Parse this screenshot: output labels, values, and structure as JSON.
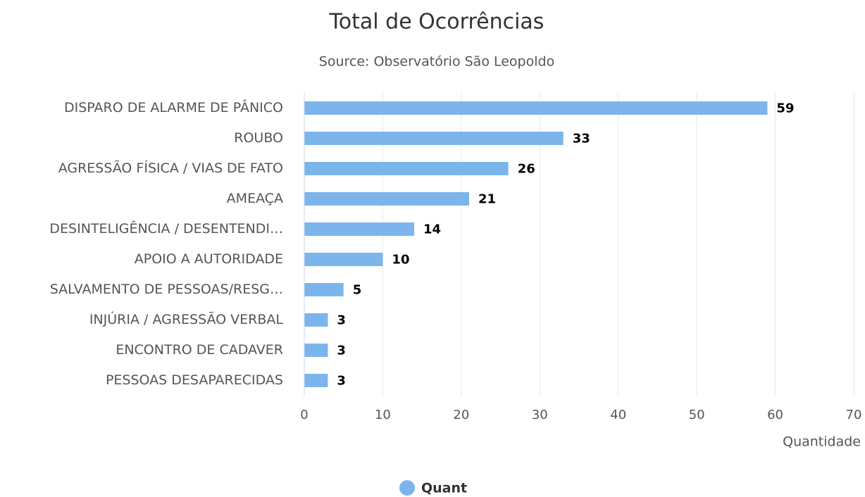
{
  "chart_data": {
    "type": "bar",
    "orientation": "horizontal",
    "title": "Total de Ocorrências",
    "subtitle": "Source: Observatório São Leopoldo",
    "x_label": "Quantidade",
    "categories": [
      "DISPARO DE ALARME DE PÂNICO",
      "ROUBO",
      "AGRESSÃO FÍSICA / VIAS DE FATO",
      "AMEAÇA",
      "DESINTELIGÊNCIA / DESENTENDI…",
      "APOIO A AUTORIDADE",
      "SALVAMENTO DE PESSOAS/RESG…",
      "INJÚRIA / AGRESSÃO VERBAL",
      "ENCONTRO DE CADAVER",
      "PESSOAS DESAPARECIDAS"
    ],
    "series": [
      {
        "name": "Quant",
        "color": "#7cb5ec",
        "values": [
          59,
          33,
          26,
          21,
          14,
          10,
          5,
          3,
          3,
          3
        ]
      }
    ],
    "xlim": [
      0,
      70
    ],
    "xticks": [
      0,
      10,
      20,
      30,
      40,
      50,
      60,
      70
    ],
    "grid": true,
    "legend": "bottom"
  }
}
